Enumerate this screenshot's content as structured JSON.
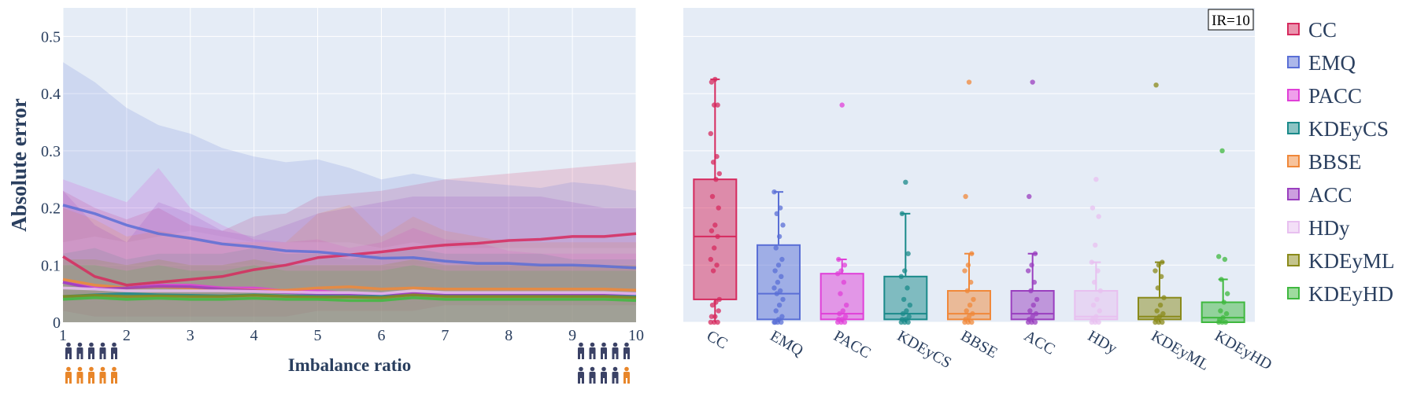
{
  "chart_data": [
    {
      "type": "line",
      "xlabel": "Imbalance ratio",
      "ylabel": "Absolute error",
      "xlim": [
        1,
        10
      ],
      "ylim": [
        0,
        0.55
      ],
      "x_ticks": [
        1,
        2,
        3,
        4,
        5,
        6,
        7,
        8,
        9,
        10
      ],
      "y_ticks": [
        0,
        0.1,
        0.2,
        0.3,
        0.4,
        0.5
      ],
      "y_tick_labels": [
        "0",
        "0.1",
        "0.2",
        "0.3",
        "0.4",
        "0.5"
      ],
      "grid": true,
      "x": [
        1,
        1.5,
        2,
        2.5,
        3,
        3.5,
        4,
        4.5,
        5,
        5.5,
        6,
        6.5,
        7,
        7.5,
        8,
        8.5,
        9,
        9.5,
        10
      ],
      "series": [
        {
          "name": "CC",
          "color": "#d62a5e",
          "mean": [
            0.115,
            0.08,
            0.065,
            0.07,
            0.075,
            0.08,
            0.092,
            0.1,
            0.113,
            0.118,
            0.123,
            0.13,
            0.135,
            0.138,
            0.143,
            0.145,
            0.15,
            0.15,
            0.155
          ],
          "upper": [
            0.23,
            0.2,
            0.18,
            0.2,
            0.17,
            0.16,
            0.185,
            0.19,
            0.22,
            0.225,
            0.23,
            0.24,
            0.25,
            0.255,
            0.26,
            0.265,
            0.27,
            0.275,
            0.28
          ],
          "lower": [
            0.02,
            0.01,
            0.01,
            0.01,
            0.01,
            0.01,
            0.01,
            0.01,
            0.02,
            0.02,
            0.02,
            0.02,
            0.03,
            0.03,
            0.03,
            0.03,
            0.03,
            0.03,
            0.03
          ]
        },
        {
          "name": "EMQ",
          "color": "#5a6fd6",
          "mean": [
            0.205,
            0.19,
            0.17,
            0.155,
            0.147,
            0.137,
            0.132,
            0.125,
            0.123,
            0.118,
            0.112,
            0.113,
            0.107,
            0.103,
            0.103,
            0.1,
            0.1,
            0.098,
            0.095
          ],
          "upper": [
            0.455,
            0.42,
            0.375,
            0.345,
            0.33,
            0.305,
            0.29,
            0.28,
            0.285,
            0.27,
            0.25,
            0.26,
            0.25,
            0.245,
            0.24,
            0.235,
            0.245,
            0.24,
            0.23
          ],
          "lower": [
            0.0,
            0.0,
            0.0,
            0.0,
            0.0,
            0.0,
            0.0,
            0.0,
            0.0,
            0.0,
            0.0,
            0.0,
            0.0,
            0.0,
            0.0,
            0.0,
            0.0,
            0.0,
            0.0
          ]
        },
        {
          "name": "PACC",
          "color": "#e040d8",
          "mean": [
            0.07,
            0.06,
            0.06,
            0.065,
            0.065,
            0.06,
            0.06,
            0.055,
            0.055,
            0.05,
            0.05,
            0.05,
            0.05,
            0.05,
            0.05,
            0.05,
            0.05,
            0.05,
            0.048
          ],
          "upper": [
            0.25,
            0.23,
            0.21,
            0.27,
            0.2,
            0.17,
            0.145,
            0.14,
            0.145,
            0.13,
            0.14,
            0.165,
            0.145,
            0.14,
            0.125,
            0.12,
            0.12,
            0.12,
            0.12
          ],
          "lower": [
            0.0,
            0.0,
            0.0,
            0.0,
            0.0,
            0.0,
            0.0,
            0.0,
            0.0,
            0.0,
            0.0,
            0.0,
            0.0,
            0.0,
            0.0,
            0.0,
            0.0,
            0.0,
            0.0
          ]
        },
        {
          "name": "KDEyCS",
          "color": "#1a8a8a",
          "mean": [
            0.045,
            0.048,
            0.05,
            0.048,
            0.047,
            0.046,
            0.048,
            0.046,
            0.046,
            0.045,
            0.046,
            0.048,
            0.047,
            0.047,
            0.047,
            0.047,
            0.046,
            0.046,
            0.045
          ],
          "upper": [
            0.12,
            0.13,
            0.11,
            0.12,
            0.12,
            0.12,
            0.13,
            0.12,
            0.12,
            0.11,
            0.12,
            0.13,
            0.12,
            0.12,
            0.12,
            0.12,
            0.11,
            0.11,
            0.11
          ],
          "lower": [
            0.0,
            0.0,
            0.0,
            0.0,
            0.0,
            0.0,
            0.0,
            0.0,
            0.0,
            0.0,
            0.0,
            0.0,
            0.0,
            0.0,
            0.0,
            0.0,
            0.0,
            0.0,
            0.0
          ]
        },
        {
          "name": "BBSE",
          "color": "#f0883a",
          "mean": [
            0.075,
            0.065,
            0.06,
            0.062,
            0.06,
            0.058,
            0.056,
            0.056,
            0.06,
            0.062,
            0.058,
            0.06,
            0.058,
            0.058,
            0.058,
            0.058,
            0.058,
            0.058,
            0.056
          ],
          "upper": [
            0.2,
            0.18,
            0.15,
            0.16,
            0.15,
            0.14,
            0.14,
            0.14,
            0.19,
            0.205,
            0.15,
            0.185,
            0.16,
            0.15,
            0.14,
            0.14,
            0.14,
            0.14,
            0.14
          ],
          "lower": [
            0.0,
            0.0,
            0.0,
            0.0,
            0.0,
            0.0,
            0.0,
            0.0,
            0.0,
            0.0,
            0.0,
            0.0,
            0.0,
            0.0,
            0.0,
            0.0,
            0.0,
            0.0,
            0.0
          ]
        },
        {
          "name": "ACC",
          "color": "#9a3fbf",
          "mean": [
            0.07,
            0.058,
            0.06,
            0.063,
            0.062,
            0.058,
            0.055,
            0.052,
            0.05,
            0.05,
            0.05,
            0.05,
            0.05,
            0.05,
            0.05,
            0.05,
            0.05,
            0.05,
            0.05
          ],
          "upper": [
            0.23,
            0.17,
            0.14,
            0.21,
            0.19,
            0.16,
            0.15,
            0.17,
            0.19,
            0.2,
            0.21,
            0.22,
            0.22,
            0.22,
            0.22,
            0.22,
            0.21,
            0.2,
            0.2
          ],
          "lower": [
            0.0,
            0.0,
            0.0,
            0.0,
            0.0,
            0.0,
            0.0,
            0.0,
            0.0,
            0.0,
            0.0,
            0.0,
            0.0,
            0.0,
            0.0,
            0.0,
            0.0,
            0.0,
            0.0
          ]
        },
        {
          "name": "HDy",
          "color": "#e8c0f0",
          "mean": [
            0.06,
            0.058,
            0.055,
            0.055,
            0.055,
            0.055,
            0.054,
            0.053,
            0.052,
            0.052,
            0.05,
            0.055,
            0.052,
            0.052,
            0.052,
            0.052,
            0.052,
            0.052,
            0.05
          ],
          "upper": [
            0.14,
            0.15,
            0.14,
            0.15,
            0.16,
            0.15,
            0.14,
            0.14,
            0.14,
            0.14,
            0.13,
            0.14,
            0.13,
            0.13,
            0.13,
            0.13,
            0.13,
            0.13,
            0.13
          ],
          "lower": [
            0.0,
            0.0,
            0.0,
            0.0,
            0.0,
            0.0,
            0.0,
            0.0,
            0.0,
            0.0,
            0.0,
            0.0,
            0.0,
            0.0,
            0.0,
            0.0,
            0.0,
            0.0,
            0.0
          ]
        },
        {
          "name": "KDEyML",
          "color": "#8a8a1a",
          "mean": [
            0.045,
            0.047,
            0.045,
            0.046,
            0.045,
            0.045,
            0.047,
            0.045,
            0.044,
            0.044,
            0.043,
            0.048,
            0.045,
            0.045,
            0.045,
            0.045,
            0.045,
            0.045,
            0.043
          ],
          "upper": [
            0.11,
            0.11,
            0.1,
            0.11,
            0.1,
            0.1,
            0.11,
            0.1,
            0.1,
            0.1,
            0.1,
            0.11,
            0.1,
            0.1,
            0.1,
            0.1,
            0.1,
            0.1,
            0.1
          ],
          "lower": [
            0.0,
            0.0,
            0.0,
            0.0,
            0.0,
            0.0,
            0.0,
            0.0,
            0.0,
            0.0,
            0.0,
            0.0,
            0.0,
            0.0,
            0.0,
            0.0,
            0.0,
            0.0,
            0.0
          ]
        },
        {
          "name": "KDEyHD",
          "color": "#3fb83f",
          "mean": [
            0.04,
            0.043,
            0.04,
            0.042,
            0.04,
            0.04,
            0.042,
            0.04,
            0.04,
            0.038,
            0.038,
            0.043,
            0.04,
            0.04,
            0.04,
            0.04,
            0.04,
            0.04,
            0.038
          ],
          "upper": [
            0.1,
            0.1,
            0.09,
            0.1,
            0.09,
            0.09,
            0.1,
            0.09,
            0.09,
            0.09,
            0.09,
            0.1,
            0.09,
            0.09,
            0.09,
            0.09,
            0.09,
            0.09,
            0.09
          ],
          "lower": [
            0.0,
            0.0,
            0.0,
            0.0,
            0.0,
            0.0,
            0.0,
            0.0,
            0.0,
            0.0,
            0.0,
            0.0,
            0.0,
            0.0,
            0.0,
            0.0,
            0.0,
            0.0,
            0.0
          ]
        }
      ],
      "annotations": {
        "left_icons": {
          "top_color": "#3b4266",
          "top_count": 5,
          "bottom_color": "#e8862a",
          "bottom_count": 5
        },
        "right_icons": {
          "top_color": "#3b4266",
          "top_count": 5,
          "bottom_color": "#3b4266",
          "bottom_count": 4,
          "bottom_extra_color": "#e8862a",
          "bottom_extra_count": 1
        }
      }
    },
    {
      "type": "box",
      "annotation": "IR=10",
      "ylim": [
        0,
        0.55
      ],
      "grid": true,
      "categories": [
        "CC",
        "EMQ",
        "PACC",
        "KDEyCS",
        "BBSE",
        "ACC",
        "HDy",
        "KDEyML",
        "KDEyHD"
      ],
      "boxes": [
        {
          "name": "CC",
          "color": "#d62a5e",
          "min": 0.0,
          "q1": 0.04,
          "median": 0.15,
          "q3": 0.25,
          "max": 0.425,
          "outliers": [],
          "points": [
            0.0,
            0.0,
            0.0,
            0.01,
            0.01,
            0.02,
            0.03,
            0.035,
            0.04,
            0.09,
            0.1,
            0.11,
            0.13,
            0.15,
            0.16,
            0.17,
            0.2,
            0.22,
            0.25,
            0.26,
            0.28,
            0.29,
            0.33,
            0.38,
            0.38,
            0.42,
            0.425
          ]
        },
        {
          "name": "EMQ",
          "color": "#5a6fd6",
          "min": 0.0,
          "q1": 0.005,
          "median": 0.05,
          "q3": 0.135,
          "max": 0.228,
          "outliers": [],
          "points": [
            0.0,
            0.0,
            0.0,
            0.0,
            0.005,
            0.01,
            0.02,
            0.03,
            0.04,
            0.05,
            0.055,
            0.06,
            0.07,
            0.08,
            0.09,
            0.1,
            0.11,
            0.13,
            0.15,
            0.17,
            0.19,
            0.2,
            0.228
          ]
        },
        {
          "name": "PACC",
          "color": "#e040d8",
          "min": 0.0,
          "q1": 0.005,
          "median": 0.015,
          "q3": 0.085,
          "max": 0.11,
          "outliers": [
            0.38
          ],
          "points": [
            0.0,
            0.0,
            0.0,
            0.005,
            0.005,
            0.01,
            0.015,
            0.02,
            0.03,
            0.05,
            0.07,
            0.085,
            0.09,
            0.1,
            0.11,
            0.38
          ]
        },
        {
          "name": "KDEyCS",
          "color": "#1a8a8a",
          "min": 0.0,
          "q1": 0.005,
          "median": 0.015,
          "q3": 0.08,
          "max": 0.19,
          "outliers": [
            0.245
          ],
          "points": [
            0.0,
            0.0,
            0.0,
            0.005,
            0.005,
            0.01,
            0.015,
            0.02,
            0.03,
            0.04,
            0.06,
            0.08,
            0.09,
            0.12,
            0.19,
            0.245
          ]
        },
        {
          "name": "BBSE",
          "color": "#f0883a",
          "min": 0.0,
          "q1": 0.005,
          "median": 0.015,
          "q3": 0.055,
          "max": 0.12,
          "outliers": [
            0.22,
            0.42
          ],
          "points": [
            0.0,
            0.0,
            0.0,
            0.005,
            0.01,
            0.015,
            0.02,
            0.03,
            0.04,
            0.055,
            0.07,
            0.09,
            0.1,
            0.12,
            0.22,
            0.42
          ]
        },
        {
          "name": "ACC",
          "color": "#9a3fbf",
          "min": 0.0,
          "q1": 0.005,
          "median": 0.015,
          "q3": 0.055,
          "max": 0.12,
          "outliers": [
            0.22,
            0.42
          ],
          "points": [
            0.0,
            0.0,
            0.0,
            0.005,
            0.01,
            0.015,
            0.02,
            0.03,
            0.04,
            0.055,
            0.07,
            0.09,
            0.1,
            0.12,
            0.22,
            0.42
          ]
        },
        {
          "name": "HDy",
          "color": "#e8c0f0",
          "min": 0.0,
          "q1": 0.005,
          "median": 0.01,
          "q3": 0.055,
          "max": 0.105,
          "outliers": [
            0.135,
            0.185,
            0.2,
            0.25
          ],
          "points": [
            0.0,
            0.0,
            0.0,
            0.005,
            0.01,
            0.02,
            0.03,
            0.04,
            0.055,
            0.07,
            0.09,
            0.105,
            0.135,
            0.185,
            0.2,
            0.25
          ]
        },
        {
          "name": "KDEyML",
          "color": "#8a8a1a",
          "min": 0.0,
          "q1": 0.005,
          "median": 0.01,
          "q3": 0.043,
          "max": 0.105,
          "outliers": [
            0.415
          ],
          "points": [
            0.0,
            0.0,
            0.0,
            0.005,
            0.01,
            0.015,
            0.02,
            0.03,
            0.043,
            0.06,
            0.08,
            0.09,
            0.1,
            0.105,
            0.415
          ]
        },
        {
          "name": "KDEyHD",
          "color": "#3fb83f",
          "min": 0.0,
          "q1": 0.0,
          "median": 0.008,
          "q3": 0.035,
          "max": 0.075,
          "outliers": [
            0.11,
            0.115,
            0.3
          ],
          "points": [
            0.0,
            0.0,
            0.0,
            0.005,
            0.008,
            0.015,
            0.02,
            0.035,
            0.05,
            0.075,
            0.11,
            0.115,
            0.3
          ]
        }
      ]
    }
  ],
  "legend": {
    "placement": "right",
    "items": [
      {
        "label": "CC",
        "color": "#d62a5e"
      },
      {
        "label": "EMQ",
        "color": "#5a6fd6"
      },
      {
        "label": "PACC",
        "color": "#e040d8"
      },
      {
        "label": "KDEyCS",
        "color": "#1a8a8a"
      },
      {
        "label": "BBSE",
        "color": "#f0883a"
      },
      {
        "label": "ACC",
        "color": "#9a3fbf"
      },
      {
        "label": "HDy",
        "color": "#e8c0f0"
      },
      {
        "label": "KDEyML",
        "color": "#8a8a1a"
      },
      {
        "label": "KDEyHD",
        "color": "#3fb83f"
      }
    ]
  },
  "colors": {
    "plot_bg": "#e5ecf6",
    "grid": "#ffffff",
    "text": "#2a3f5f"
  }
}
